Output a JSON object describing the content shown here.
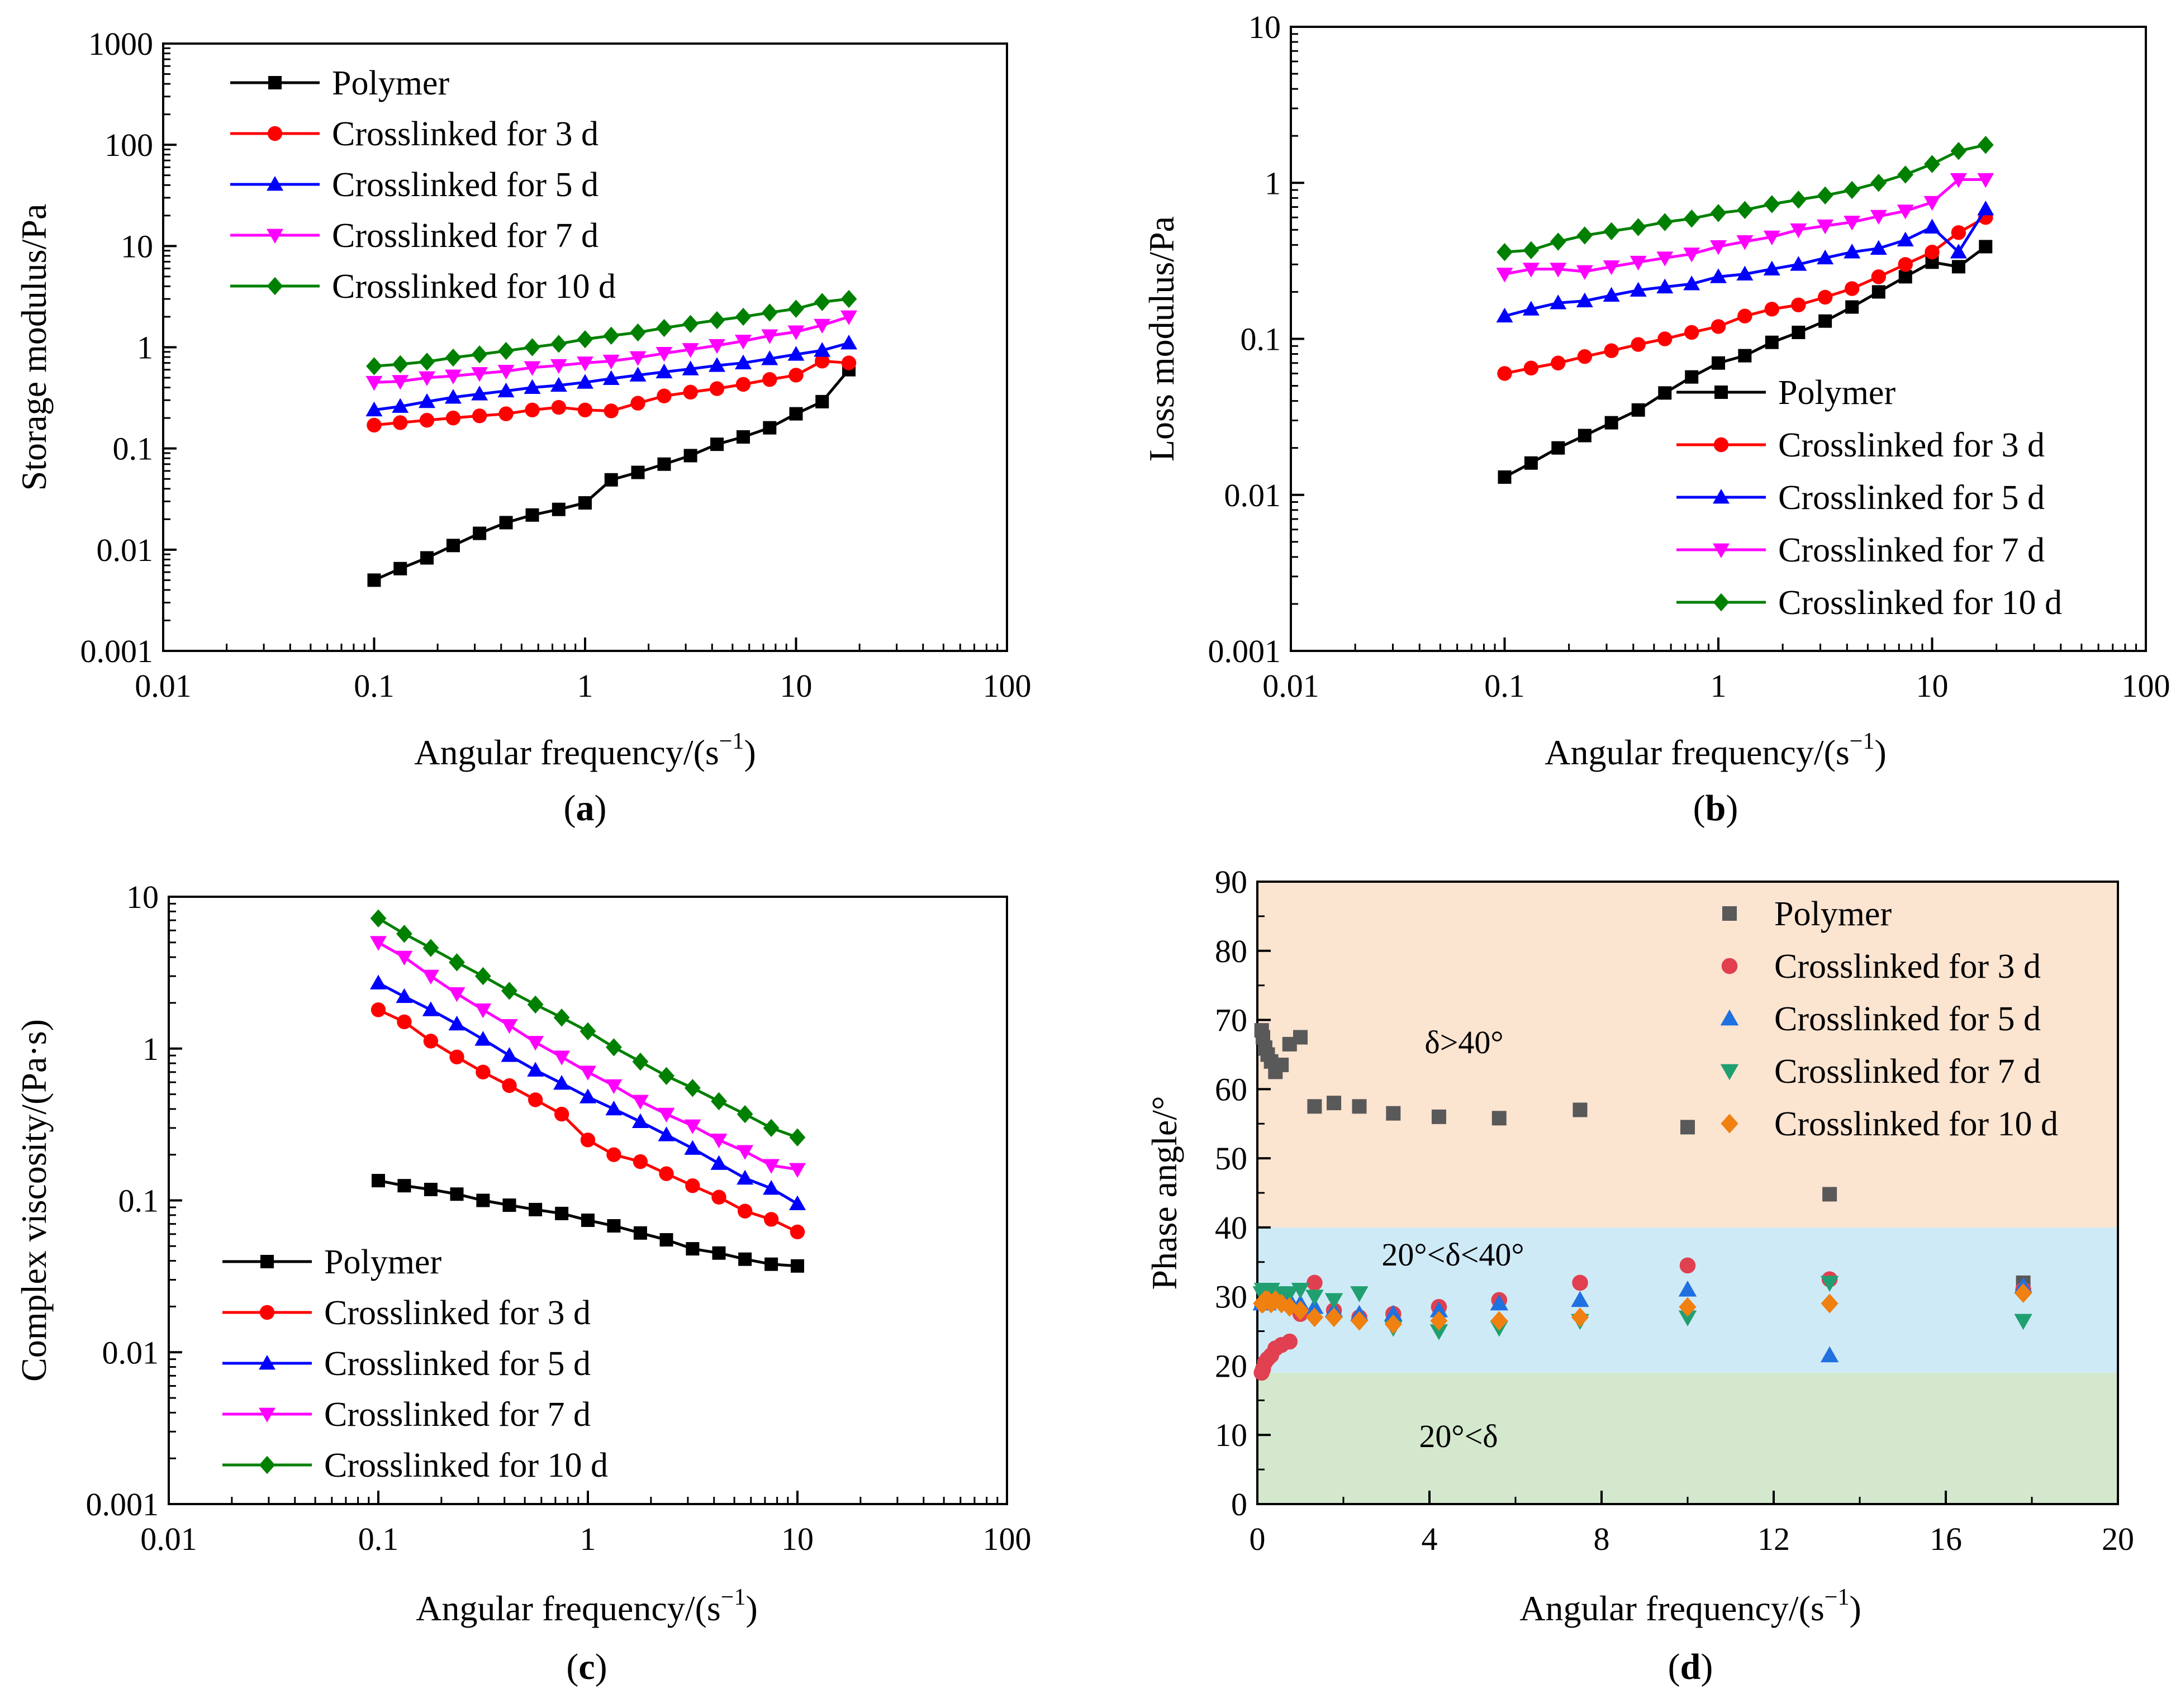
{
  "panels": [
    {
      "id": "a",
      "label": "a",
      "ylabel": "Storage modulus/Pa",
      "xlabel": "Angular frequency/(s",
      "xlabel_sup": "−1",
      "xlabel_end": ")"
    },
    {
      "id": "b",
      "label": "b",
      "ylabel": "Loss modulus/Pa",
      "xlabel": "Angular frequency/(s",
      "xlabel_sup": "−1",
      "xlabel_end": ")"
    },
    {
      "id": "c",
      "label": "c",
      "ylabel": "Complex viscosity/(Pa·s)",
      "xlabel": "Angular frequency/(s",
      "xlabel_sup": "−1",
      "xlabel_end": ")"
    },
    {
      "id": "d",
      "label": "d",
      "ylabel": "Phase angle/°",
      "xlabel": "Angular frequency/(s",
      "xlabel_sup": "−1",
      "xlabel_end": ")",
      "regions": [
        {
          "text": "δ>40°"
        },
        {
          "text": "20°<δ<40°"
        },
        {
          "text": "20°<δ"
        }
      ]
    }
  ],
  "series_names": [
    "Polymer",
    "Crosslinked for 3 d",
    "Crosslinked for 5 d",
    "Crosslinked for 7 d",
    "Crosslinked for 10 d"
  ],
  "colors": {
    "abc": [
      "#000000",
      "#ff0000",
      "#0000ff",
      "#ff00ff",
      "#008000"
    ],
    "d": [
      "#595959",
      "#e04050",
      "#2070e0",
      "#20a070",
      "#f08010"
    ],
    "region_high": "#fbe4d0",
    "region_mid": "#cfeaf7",
    "region_low": "#d3e8cc"
  },
  "chart_data": [
    {
      "panel": "a",
      "type": "line",
      "xscale": "log",
      "yscale": "log",
      "xlim": [
        0.01,
        100
      ],
      "ylim": [
        0.001,
        1000
      ],
      "xticks": [
        "0.01",
        "0.1",
        "1",
        "10",
        "100"
      ],
      "yticks": [
        "0.001",
        "0.01",
        "0.1",
        "1",
        "10",
        "100",
        "1000"
      ],
      "x": [
        0.1,
        0.133,
        0.178,
        0.237,
        0.316,
        0.422,
        0.562,
        0.75,
        1.0,
        1.33,
        1.78,
        2.37,
        3.16,
        4.22,
        5.62,
        7.5,
        10,
        13.3,
        17.8
      ],
      "series": [
        {
          "name": "Polymer",
          "values": [
            0.005,
            0.0065,
            0.0083,
            0.011,
            0.0145,
            0.0185,
            0.022,
            0.025,
            0.029,
            0.049,
            0.058,
            0.07,
            0.085,
            0.11,
            0.13,
            0.16,
            0.22,
            0.29,
            0.6
          ]
        },
        {
          "name": "Crosslinked for 3 d",
          "values": [
            0.17,
            0.18,
            0.19,
            0.2,
            0.21,
            0.22,
            0.24,
            0.255,
            0.24,
            0.235,
            0.28,
            0.33,
            0.36,
            0.39,
            0.43,
            0.48,
            0.53,
            0.73,
            0.7
          ]
        },
        {
          "name": "Crosslinked for 5 d",
          "values": [
            0.24,
            0.26,
            0.29,
            0.32,
            0.345,
            0.37,
            0.4,
            0.42,
            0.45,
            0.49,
            0.53,
            0.57,
            0.61,
            0.66,
            0.7,
            0.77,
            0.85,
            0.93,
            1.1
          ]
        },
        {
          "name": "Crosslinked for 7 d",
          "values": [
            0.45,
            0.46,
            0.5,
            0.52,
            0.55,
            0.58,
            0.63,
            0.66,
            0.7,
            0.73,
            0.79,
            0.87,
            0.95,
            1.04,
            1.15,
            1.3,
            1.42,
            1.65,
            2.0
          ]
        },
        {
          "name": "Crosslinked for 10 d",
          "values": [
            0.65,
            0.68,
            0.72,
            0.79,
            0.85,
            0.92,
            1.0,
            1.08,
            1.2,
            1.3,
            1.4,
            1.55,
            1.7,
            1.85,
            2.0,
            2.2,
            2.4,
            2.8,
            3.0
          ]
        }
      ]
    },
    {
      "panel": "b",
      "type": "line",
      "xscale": "log",
      "yscale": "log",
      "xlim": [
        0.01,
        100
      ],
      "ylim": [
        0.001,
        10
      ],
      "xticks": [
        "0.01",
        "0.1",
        "1",
        "10",
        "100"
      ],
      "yticks": [
        "0.001",
        "0.01",
        "0.1",
        "1",
        "10"
      ],
      "x": [
        0.1,
        0.133,
        0.178,
        0.237,
        0.316,
        0.422,
        0.562,
        0.75,
        1.0,
        1.33,
        1.78,
        2.37,
        3.16,
        4.22,
        5.62,
        7.5,
        10,
        13.3,
        17.8
      ],
      "series": [
        {
          "name": "Polymer",
          "values": [
            0.013,
            0.016,
            0.02,
            0.024,
            0.029,
            0.035,
            0.045,
            0.057,
            0.07,
            0.078,
            0.095,
            0.11,
            0.13,
            0.16,
            0.2,
            0.25,
            0.31,
            0.29,
            0.39
          ]
        },
        {
          "name": "Crosslinked for 3 d",
          "values": [
            0.06,
            0.065,
            0.07,
            0.077,
            0.084,
            0.092,
            0.1,
            0.11,
            0.12,
            0.14,
            0.155,
            0.165,
            0.185,
            0.21,
            0.25,
            0.3,
            0.36,
            0.48,
            0.6
          ]
        },
        {
          "name": "Crosslinked for 5 d",
          "values": [
            0.14,
            0.155,
            0.17,
            0.175,
            0.19,
            0.205,
            0.215,
            0.225,
            0.25,
            0.26,
            0.28,
            0.3,
            0.33,
            0.36,
            0.38,
            0.43,
            0.52,
            0.36,
            0.68
          ]
        },
        {
          "name": "Crosslinked for 7 d",
          "values": [
            0.26,
            0.28,
            0.28,
            0.27,
            0.29,
            0.31,
            0.33,
            0.35,
            0.39,
            0.42,
            0.45,
            0.5,
            0.53,
            0.56,
            0.61,
            0.66,
            0.75,
            1.05,
            1.05
          ]
        },
        {
          "name": "Crosslinked for 10 d",
          "values": [
            0.36,
            0.37,
            0.42,
            0.46,
            0.49,
            0.52,
            0.56,
            0.59,
            0.64,
            0.67,
            0.73,
            0.78,
            0.83,
            0.9,
            1.0,
            1.13,
            1.32,
            1.6,
            1.75
          ]
        }
      ]
    },
    {
      "panel": "c",
      "type": "line",
      "xscale": "log",
      "yscale": "log",
      "xlim": [
        0.01,
        100
      ],
      "ylim": [
        0.001,
        10
      ],
      "xticks": [
        "0.01",
        "0.1",
        "1",
        "10",
        "100"
      ],
      "yticks": [
        "0.001",
        "0.01",
        "0.1",
        "1",
        "10"
      ],
      "x": [
        0.1,
        0.133,
        0.178,
        0.237,
        0.316,
        0.422,
        0.562,
        0.75,
        1.0,
        1.33,
        1.78,
        2.37,
        3.16,
        4.22,
        5.62,
        7.5,
        10
      ],
      "series": [
        {
          "name": "Polymer",
          "values": [
            0.135,
            0.125,
            0.118,
            0.11,
            0.1,
            0.093,
            0.087,
            0.082,
            0.074,
            0.068,
            0.061,
            0.055,
            0.048,
            0.045,
            0.041,
            0.038,
            0.037
          ]
        },
        {
          "name": "Crosslinked for 3 d",
          "values": [
            1.8,
            1.5,
            1.12,
            0.88,
            0.7,
            0.57,
            0.46,
            0.37,
            0.25,
            0.2,
            0.18,
            0.15,
            0.125,
            0.105,
            0.085,
            0.075,
            0.062
          ]
        },
        {
          "name": "Crosslinked for 5 d",
          "values": [
            2.7,
            2.2,
            1.8,
            1.45,
            1.15,
            0.9,
            0.72,
            0.59,
            0.48,
            0.4,
            0.33,
            0.27,
            0.22,
            0.175,
            0.14,
            0.12,
            0.095
          ]
        },
        {
          "name": "Crosslinked for 7 d",
          "values": [
            5.0,
            4.0,
            3.0,
            2.3,
            1.8,
            1.42,
            1.1,
            0.88,
            0.7,
            0.57,
            0.45,
            0.37,
            0.31,
            0.25,
            0.21,
            0.17,
            0.16
          ]
        },
        {
          "name": "Crosslinked for 10 d",
          "values": [
            7.2,
            5.7,
            4.6,
            3.7,
            3.0,
            2.4,
            1.95,
            1.6,
            1.3,
            1.02,
            0.82,
            0.66,
            0.55,
            0.45,
            0.37,
            0.3,
            0.26
          ]
        }
      ]
    },
    {
      "panel": "d",
      "type": "scatter",
      "xscale": "linear",
      "yscale": "linear",
      "xlim": [
        0,
        20
      ],
      "ylim": [
        0,
        90
      ],
      "xticks": [
        "0",
        "4",
        "8",
        "12",
        "16",
        "20"
      ],
      "yticks": [
        "0",
        "10",
        "20",
        "30",
        "40",
        "50",
        "60",
        "70",
        "80",
        "90"
      ],
      "bands": [
        [
          40,
          90
        ],
        [
          19,
          40
        ],
        [
          0,
          19
        ]
      ],
      "series": [
        {
          "name": "Polymer",
          "x": [
            0.1,
            0.13,
            0.18,
            0.24,
            0.32,
            0.42,
            0.56,
            0.75,
            1.0,
            1.33,
            1.78,
            2.37,
            3.16,
            4.22,
            5.62,
            7.5,
            10,
            13.3,
            17.8
          ],
          "y": [
            68.5,
            67.5,
            66.0,
            65.0,
            64.0,
            62.5,
            63.5,
            66.5,
            67.5,
            57.5,
            58.0,
            57.5,
            56.5,
            56.0,
            55.8,
            57.0,
            54.5,
            44.8,
            32.0
          ]
        },
        {
          "name": "Crosslinked for 3 d",
          "x": [
            0.1,
            0.13,
            0.18,
            0.24,
            0.32,
            0.42,
            0.56,
            0.75,
            1.0,
            1.33,
            1.78,
            2.37,
            3.16,
            4.22,
            5.62,
            7.5,
            10,
            13.3,
            17.8
          ],
          "y": [
            19.0,
            19.5,
            20.5,
            21.0,
            21.5,
            22.5,
            23.0,
            23.5,
            27.5,
            32.0,
            28.0,
            27.0,
            27.5,
            28.5,
            29.5,
            32.0,
            34.5,
            32.5,
            31.0
          ]
        },
        {
          "name": "Crosslinked for 5 d",
          "x": [
            0.1,
            0.13,
            0.18,
            0.24,
            0.32,
            0.42,
            0.56,
            0.75,
            1.0,
            1.33,
            1.78,
            2.37,
            3.16,
            4.22,
            5.62,
            7.5,
            10,
            13.3,
            17.8
          ],
          "y": [
            29.0,
            29.5,
            30.0,
            29.0,
            29.5,
            30.0,
            29.5,
            29.5,
            29.0,
            28.5,
            28.0,
            27.5,
            27.5,
            28.0,
            29.0,
            29.5,
            31.0,
            21.5,
            31.5
          ]
        },
        {
          "name": "Crosslinked for 7 d",
          "x": [
            0.1,
            0.13,
            0.18,
            0.24,
            0.32,
            0.42,
            0.56,
            0.75,
            1.0,
            1.33,
            1.78,
            2.37,
            3.16,
            4.22,
            5.62,
            7.5,
            10,
            13.3,
            17.8
          ],
          "y": [
            30.5,
            31.0,
            30.5,
            30.0,
            31.0,
            30.5,
            30.0,
            30.5,
            31.0,
            30.0,
            29.5,
            30.5,
            25.5,
            25.0,
            25.5,
            26.5,
            27.0,
            32.0,
            26.5
          ]
        },
        {
          "name": "Crosslinked for 10 d",
          "x": [
            0.1,
            0.13,
            0.18,
            0.24,
            0.32,
            0.42,
            0.56,
            0.75,
            1.0,
            1.33,
            1.78,
            2.37,
            3.16,
            4.22,
            5.62,
            7.5,
            10,
            13.3,
            17.8
          ],
          "y": [
            29.0,
            29.0,
            29.5,
            29.5,
            29.0,
            29.5,
            29.0,
            28.5,
            28.0,
            27.0,
            27.0,
            26.5,
            26.0,
            26.5,
            26.5,
            27.0,
            28.5,
            29.0,
            30.5
          ]
        }
      ]
    }
  ]
}
